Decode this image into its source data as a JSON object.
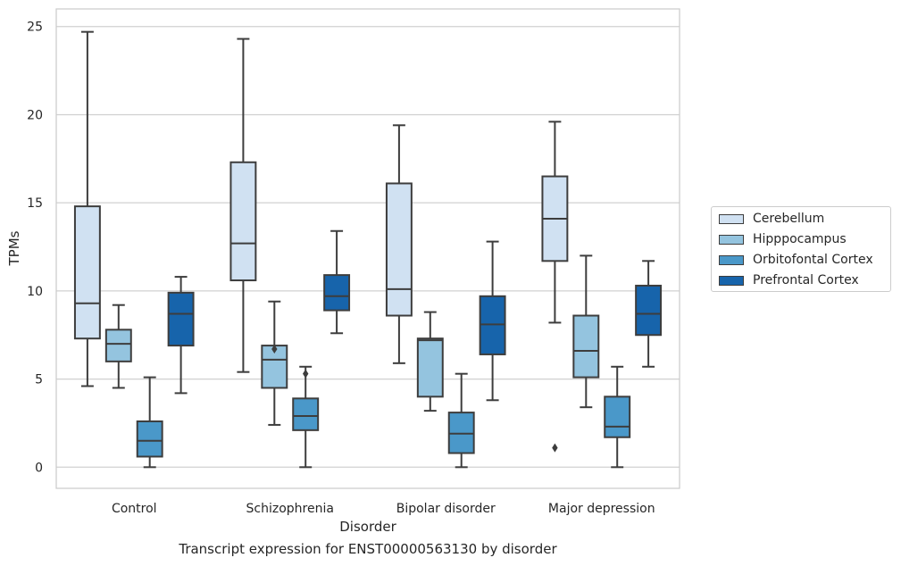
{
  "chart_data": {
    "type": "box",
    "title": "",
    "caption": "Transcript expression for ENST00000563130 by disorder",
    "xlabel": "Disorder",
    "ylabel": "TPMs",
    "ylim": [
      -1.2,
      26
    ],
    "yticks": [
      "0",
      "5",
      "10",
      "15",
      "20",
      "25"
    ],
    "grid": "horizontal",
    "legend_position": "right",
    "categories": [
      "Control",
      "Schizophrenia",
      "Bipolar disorder",
      "Major depression"
    ],
    "series": [
      {
        "name": "Cerebellum",
        "color": "#d0e1f2",
        "boxes": [
          {
            "whisker_low": 4.6,
            "q1": 7.3,
            "median": 9.3,
            "q3": 14.8,
            "whisker_high": 24.7,
            "outliers": []
          },
          {
            "whisker_low": 5.4,
            "q1": 10.6,
            "median": 12.7,
            "q3": 17.3,
            "whisker_high": 24.3,
            "outliers": []
          },
          {
            "whisker_low": 5.9,
            "q1": 8.6,
            "median": 10.1,
            "q3": 16.1,
            "whisker_high": 19.4,
            "outliers": []
          },
          {
            "whisker_low": 8.2,
            "q1": 11.7,
            "median": 14.1,
            "q3": 16.5,
            "whisker_high": 19.6,
            "outliers": [
              1.1
            ]
          }
        ]
      },
      {
        "name": "Hipppocampus",
        "color": "#94c4df",
        "boxes": [
          {
            "whisker_low": 4.5,
            "q1": 6.0,
            "median": 7.0,
            "q3": 7.8,
            "whisker_high": 9.2,
            "outliers": []
          },
          {
            "whisker_low": 2.4,
            "q1": 4.5,
            "median": 6.1,
            "q3": 6.9,
            "whisker_high": 9.4,
            "outliers": [
              6.7
            ]
          },
          {
            "whisker_low": 3.2,
            "q1": 4.0,
            "median": 7.2,
            "q3": 7.3,
            "whisker_high": 8.8,
            "outliers": []
          },
          {
            "whisker_low": 3.4,
            "q1": 5.1,
            "median": 6.6,
            "q3": 8.6,
            "whisker_high": 12.0,
            "outliers": []
          }
        ]
      },
      {
        "name": "Orbitofontal Cortex",
        "color": "#4a98c9",
        "boxes": [
          {
            "whisker_low": 0.0,
            "q1": 0.6,
            "median": 1.5,
            "q3": 2.6,
            "whisker_high": 5.1,
            "outliers": []
          },
          {
            "whisker_low": 0.0,
            "q1": 2.1,
            "median": 2.9,
            "q3": 3.9,
            "whisker_high": 5.7,
            "outliers": [
              5.3
            ]
          },
          {
            "whisker_low": 0.0,
            "q1": 0.8,
            "median": 1.9,
            "q3": 3.1,
            "whisker_high": 5.3,
            "outliers": []
          },
          {
            "whisker_low": 0.0,
            "q1": 1.7,
            "median": 2.3,
            "q3": 4.0,
            "whisker_high": 5.7,
            "outliers": []
          }
        ]
      },
      {
        "name": "Prefrontal Cortex",
        "color": "#1764ab",
        "boxes": [
          {
            "whisker_low": 4.2,
            "q1": 6.9,
            "median": 8.7,
            "q3": 9.9,
            "whisker_high": 10.8,
            "outliers": []
          },
          {
            "whisker_low": 7.6,
            "q1": 8.9,
            "median": 9.7,
            "q3": 10.9,
            "whisker_high": 13.4,
            "outliers": []
          },
          {
            "whisker_low": 3.8,
            "q1": 6.4,
            "median": 8.1,
            "q3": 9.7,
            "whisker_high": 12.8,
            "outliers": []
          },
          {
            "whisker_low": 5.7,
            "q1": 7.5,
            "median": 8.7,
            "q3": 10.3,
            "whisker_high": 11.7,
            "outliers": []
          }
        ]
      }
    ]
  }
}
